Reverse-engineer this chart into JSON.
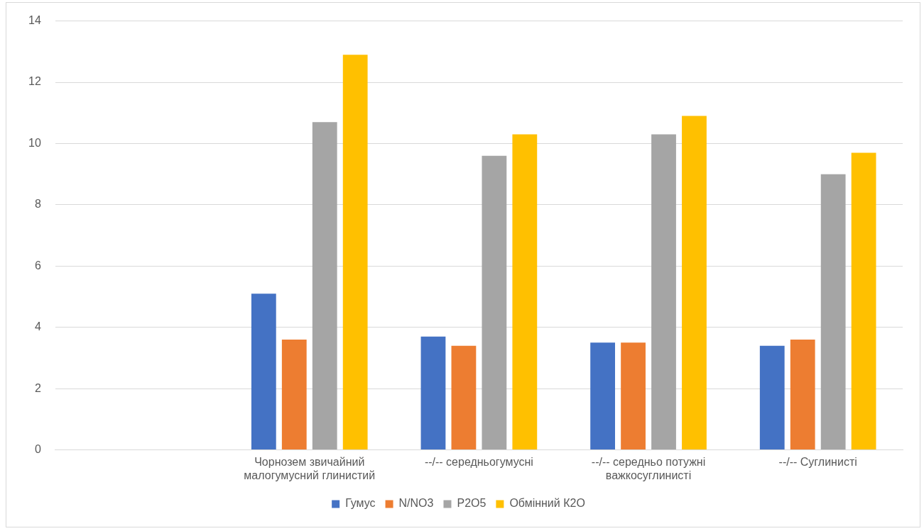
{
  "chart_data": {
    "type": "bar",
    "categories": [
      null,
      "Чорнозем звичайний малогумусний глинистий",
      "--/-- середньогумусні",
      "--/-- середньо потужні важкосуглинисті",
      "--/-- Суглинисті"
    ],
    "series": [
      {
        "name": "Гумус",
        "color": "#4472c4",
        "values": [
          null,
          5.1,
          3.7,
          3.5,
          3.4
        ]
      },
      {
        "name": "N/NO3",
        "color": "#ed7d31",
        "values": [
          null,
          3.6,
          3.4,
          3.5,
          3.6
        ]
      },
      {
        "name": "P2O5",
        "color": "#a5a5a5",
        "values": [
          null,
          10.7,
          9.6,
          10.3,
          9.0
        ]
      },
      {
        "name": "Обмінний К2О",
        "color": "#ffc000",
        "values": [
          null,
          12.9,
          10.3,
          10.9,
          9.7
        ]
      }
    ],
    "ylim": [
      0,
      14
    ],
    "yticks": [
      0,
      2,
      4,
      6,
      8,
      10,
      12,
      14
    ],
    "grid": "y",
    "legend": "bottom"
  }
}
